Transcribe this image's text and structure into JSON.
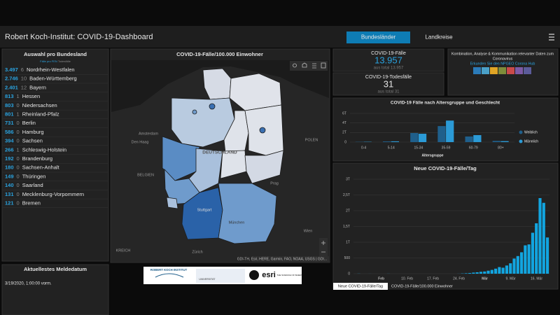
{
  "header": {
    "title": "Robert Koch-Institut: COVID-19-Dashboard",
    "tabs": [
      "Bundesländer",
      "Landkreise"
    ]
  },
  "state_list": {
    "title": "Auswahl pro Bundesland",
    "subtitle": [
      "Fälle pro FEN",
      "Todesfälle"
    ],
    "rows": [
      {
        "cases": "3.497",
        "deaths": 6,
        "name": "Nordrhein-Westfalen"
      },
      {
        "cases": "2.746",
        "deaths": 10,
        "name": "Baden-Württemberg"
      },
      {
        "cases": "2.401",
        "deaths": 12,
        "name": "Bayern"
      },
      {
        "cases": "813",
        "deaths": 1,
        "name": "Hessen"
      },
      {
        "cases": "803",
        "deaths": 0,
        "name": "Niedersachsen"
      },
      {
        "cases": "801",
        "deaths": 1,
        "name": "Rheinland-Pfalz"
      },
      {
        "cases": "731",
        "deaths": 0,
        "name": "Berlin"
      },
      {
        "cases": "586",
        "deaths": 0,
        "name": "Hamburg"
      },
      {
        "cases": "394",
        "deaths": 0,
        "name": "Sachsen"
      },
      {
        "cases": "266",
        "deaths": 1,
        "name": "Schleswig-Holstein"
      },
      {
        "cases": "192",
        "deaths": 0,
        "name": "Brandenburg"
      },
      {
        "cases": "180",
        "deaths": 0,
        "name": "Sachsen-Anhalt"
      },
      {
        "cases": "149",
        "deaths": 0,
        "name": "Thüringen"
      },
      {
        "cases": "140",
        "deaths": 0,
        "name": "Saarland"
      },
      {
        "cases": "131",
        "deaths": 0,
        "name": "Mecklenburg-Vorpommern"
      },
      {
        "cases": "121",
        "deaths": 0,
        "name": "Bremen"
      }
    ]
  },
  "latest_date": {
    "title": "Aktuellestes Meldedatum",
    "value": "3/19/2020, 1:00:00 vorm."
  },
  "map": {
    "title": "COVID-19-Fälle/100.000 Einwohner",
    "labels": [
      "DEUTSCHLAND",
      "BELGIEN",
      "Prag",
      "Stuttgart",
      "München",
      "Amsterdam",
      "Den Haag",
      "Zürich",
      "Wien",
      "POLEN",
      "KREICH"
    ],
    "attribution": "GDI-TH, Esri, HERE, Garmin, FAO, NOAA, USGS | GDI..."
  },
  "logos": [
    "ROBERT KOCH INSTITUT",
    "UNIVERSITÄT",
    "esri",
    "THE SCIENCE OF WHERE"
  ],
  "cases": {
    "title": "COVID-19-Fälle",
    "value": "13.957",
    "total": "aus total 13.957"
  },
  "deaths": {
    "title": "COVID-19-Todesfälle",
    "value": 31,
    "total": "aus total 31"
  },
  "info": {
    "text": "Kombination, Analyse & Kommunikation relevanter Daten zum",
    "text2": "Coronavirus",
    "link": "Erkunden Sie den NPGEO Corona Hub"
  },
  "age_chart": {
    "type": "bar",
    "title": "COVID-19 Fälle nach Altersgruppe und Geschlecht",
    "categories": [
      "0-4",
      "5-14",
      "15-34",
      "35-59",
      "60-79",
      "80+"
    ],
    "series": [
      {
        "name": "Weiblich",
        "color": "#1f5f8b",
        "values": [
          50,
          140,
          1900,
          3350,
          1170,
          250
        ]
      },
      {
        "name": "Männlich",
        "color": "#2b9ad6",
        "values": [
          60,
          160,
          1750,
          4500,
          1460,
          200
        ]
      }
    ],
    "ylim": [
      0,
      6000
    ],
    "yticks": [
      0,
      {
        "value": 2000,
        "label": "2T"
      },
      {
        "value": 4000,
        "label": "4T"
      },
      {
        "value": 6000,
        "label": "6T"
      }
    ],
    "x_label": "Altersgruppe",
    "grid": true
  },
  "daily_chart": {
    "type": "bar",
    "title": "Neue COVID-19-Fälle/Tag",
    "categories": [
      null,
      null,
      null,
      null,
      null,
      null,
      null,
      "Feb",
      null,
      null,
      null,
      null,
      null,
      null,
      "10. Feb",
      null,
      null,
      null,
      null,
      null,
      null,
      "17. Feb",
      null,
      null,
      null,
      null,
      null,
      null,
      "24. Feb",
      null,
      null,
      null,
      null,
      null,
      null,
      "Mär",
      null,
      null,
      null,
      null,
      null,
      null,
      "9. Mär",
      null,
      null,
      null,
      null,
      null,
      null,
      "16. Mär",
      null,
      null,
      null
    ],
    "values": [
      0,
      3,
      0,
      0,
      1,
      0,
      0,
      0,
      0,
      2,
      0,
      0,
      0,
      0,
      0,
      0,
      0,
      0,
      0,
      0,
      0,
      0,
      0,
      0,
      0,
      0,
      0,
      0,
      2,
      8,
      14,
      22,
      35,
      45,
      60,
      70,
      95,
      120,
      160,
      210,
      190,
      260,
      330,
      480,
      560,
      680,
      900,
      930,
      1300,
      1600,
      2400,
      2250,
      1150
    ],
    "color": "#12a5e0",
    "ylim": [
      0,
      3000
    ],
    "yticks": [
      0,
      500,
      {
        "value": 1000,
        "label": "1T"
      },
      {
        "value": 1500,
        "label": "1,5T"
      },
      {
        "value": 2000,
        "label": "2T"
      },
      {
        "value": 2500,
        "label": "2,5T"
      },
      {
        "value": 3000,
        "label": "3T"
      }
    ],
    "grid": true
  },
  "bottom_tabs": [
    "Neue COVID-19-Fälle/Tag",
    "COVID-19-Fälle/100.000 Einwohner"
  ]
}
